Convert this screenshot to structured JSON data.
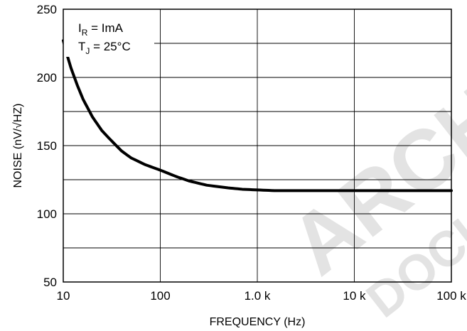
{
  "chart_data": {
    "type": "line",
    "xlabel": "FREQUENCY (Hz)",
    "ylabel": "NOISE (nV/√HZ)",
    "xscale": "log",
    "xlim": [
      10,
      100000
    ],
    "ylim": [
      50,
      250
    ],
    "x_ticks": [
      {
        "value": 10,
        "label": "10"
      },
      {
        "value": 100,
        "label": "100"
      },
      {
        "value": 1000,
        "label": "1.0 k"
      },
      {
        "value": 10000,
        "label": "10 k"
      },
      {
        "value": 100000,
        "label": "100 k"
      }
    ],
    "y_ticks": [
      {
        "value": 50,
        "label": "50"
      },
      {
        "value": 100,
        "label": "100"
      },
      {
        "value": 150,
        "label": "150"
      },
      {
        "value": 200,
        "label": "200"
      },
      {
        "value": 250,
        "label": "250"
      }
    ],
    "y_minor_gridlines": [
      75,
      125,
      175,
      225
    ],
    "grid": true,
    "annotations": [
      {
        "main": "I",
        "sub": "R",
        "rest": " = ImA"
      },
      {
        "main": "T",
        "sub": "J",
        "rest": " = 25°C"
      }
    ],
    "series": [
      {
        "color": "#000000",
        "x": [
          10,
          11,
          12,
          14,
          16,
          20,
          25,
          30,
          40,
          50,
          70,
          100,
          150,
          200,
          300,
          500,
          700,
          1000,
          1500,
          2000,
          5000,
          10000,
          20000,
          50000,
          100000
        ],
        "y": [
          227,
          216,
          207,
          194,
          184,
          171,
          161,
          155,
          146,
          141,
          136,
          132,
          127,
          124,
          121,
          119,
          118,
          117.5,
          117,
          117,
          117,
          117,
          117,
          117,
          117
        ]
      }
    ]
  },
  "watermark": "ARCHIVE DOCUMENT"
}
